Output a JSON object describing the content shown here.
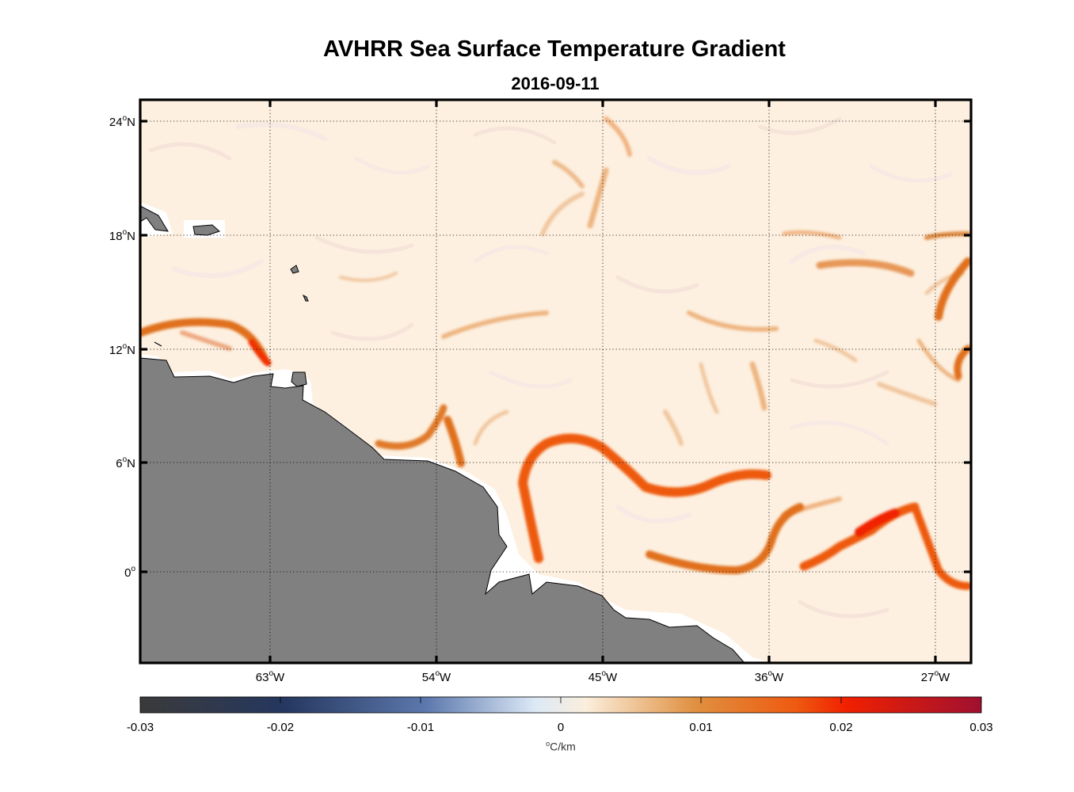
{
  "title": "AVHRR Sea Surface Temperature Gradient",
  "subtitle": "2016-09-11",
  "map": {
    "lon_ticks": [
      {
        "deg": "63",
        "suffix": "W"
      },
      {
        "deg": "54",
        "suffix": "W"
      },
      {
        "deg": "45",
        "suffix": "W"
      },
      {
        "deg": "36",
        "suffix": "W"
      },
      {
        "deg": "27",
        "suffix": "W"
      }
    ],
    "lat_ticks": [
      {
        "deg": "24",
        "suffix": "N"
      },
      {
        "deg": "18",
        "suffix": "N"
      },
      {
        "deg": "12",
        "suffix": "N"
      },
      {
        "deg": "6",
        "suffix": "N"
      },
      {
        "deg": "0",
        "suffix": ""
      }
    ],
    "land_color": "#808080",
    "ocean_base_color": "#fdf0e0"
  },
  "colorbar": {
    "tick_labels": [
      "-0.03",
      "-0.02",
      "-0.01",
      "0",
      "0.01",
      "0.02",
      "0.03"
    ],
    "unit_deg": "o",
    "unit_text": "C/km",
    "colors": [
      "#3a3a3a",
      "#25375f",
      "#5c78ad",
      "#dce9f6",
      "#fbeedc",
      "#e09040",
      "#ee5a10",
      "#f02000",
      "#a01030"
    ]
  }
}
